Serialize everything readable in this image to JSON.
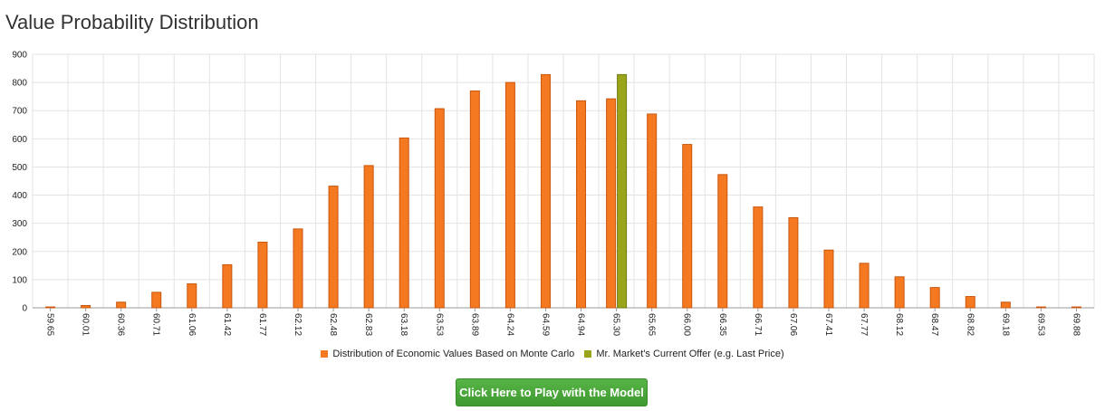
{
  "page": {
    "title": "Value Probability Distribution",
    "button_label": "Click Here to Play with the Model"
  },
  "colors": {
    "primary_bar": "#f47920",
    "primary_bar_stroke": "#c9570d",
    "highlight_bar": "#9aa51c",
    "highlight_bar_stroke": "#6f7a10",
    "grid": "#e3e3e3",
    "button": "#4aa83a"
  },
  "chart_data": {
    "type": "bar",
    "title": "Value Probability Distribution",
    "xlabel": "",
    "ylabel": "",
    "ylim": [
      0,
      900
    ],
    "yticks": [
      0,
      100,
      200,
      300,
      400,
      500,
      600,
      700,
      800,
      900
    ],
    "grid": true,
    "legend_placement": "bottom",
    "categories": [
      "59.65",
      "60.01",
      "60.36",
      "60.71",
      "61.06",
      "61.42",
      "61.77",
      "62.12",
      "62.48",
      "62.83",
      "63.18",
      "63.53",
      "63.89",
      "64.24",
      "64.59",
      "64.94",
      "65.30",
      "65.65",
      "66.00",
      "66.35",
      "66.71",
      "67.06",
      "67.41",
      "67.77",
      "68.12",
      "68.47",
      "68.82",
      "69.18",
      "69.53",
      "69.88"
    ],
    "series": [
      {
        "name": "Distribution of Economic Values Based on Monte Carlo",
        "color": "#f47920",
        "values": [
          3,
          8,
          20,
          55,
          85,
          153,
          233,
          280,
          432,
          505,
          603,
          707,
          770,
          800,
          828,
          735,
          742,
          688,
          580,
          473,
          358,
          320,
          205,
          158,
          110,
          72,
          40,
          20,
          3,
          3
        ]
      },
      {
        "name": "Mr. Market's Current Offer (e.g. Last Price)",
        "color": "#9aa51c",
        "values": [
          0,
          0,
          0,
          0,
          0,
          0,
          0,
          0,
          0,
          0,
          0,
          0,
          0,
          0,
          0,
          0,
          828,
          0,
          0,
          0,
          0,
          0,
          0,
          0,
          0,
          0,
          0,
          0,
          0,
          0
        ]
      }
    ]
  }
}
